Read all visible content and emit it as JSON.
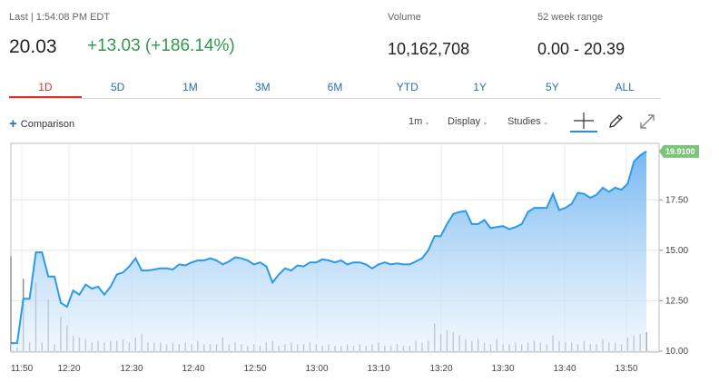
{
  "quote": {
    "last_label": "Last | 1:54:08 PM EDT",
    "price": "20.03",
    "change": "+13.03 (+186.14%)",
    "volume_label": "Volume",
    "volume_value": "10,162,708",
    "range_label": "52 week range",
    "range_value": "0.00 - 20.39",
    "change_color": "#2e9b4a"
  },
  "tabs": [
    {
      "label": "1D",
      "active": true
    },
    {
      "label": "5D"
    },
    {
      "label": "1M"
    },
    {
      "label": "3M"
    },
    {
      "label": "6M"
    },
    {
      "label": "YTD"
    },
    {
      "label": "1Y"
    },
    {
      "label": "5Y"
    },
    {
      "label": "ALL"
    }
  ],
  "toolbar": {
    "comparison_label": "Comparison",
    "interval_label": "1m",
    "display_label": "Display",
    "studies_label": "Studies",
    "icons": [
      "plus-icon",
      "crosshair-icon",
      "pencil-icon",
      "expand-icon"
    ]
  },
  "chart_data": {
    "type": "area",
    "line_color": "#2b9be8",
    "current_label": "19.9100",
    "current_label_color": "#7cc47a",
    "y_ticks": [
      "10.00",
      "12.50",
      "15.00",
      "17.50"
    ],
    "y_range": [
      10,
      20.3
    ],
    "x_ticks": [
      "11:50",
      "12:20",
      "12:30",
      "12:40",
      "12:50",
      "13:00",
      "13:10",
      "13:20",
      "13:30",
      "13:40",
      "13:50"
    ],
    "price": [
      10.4,
      10.4,
      12.6,
      12.6,
      14.9,
      14.9,
      13.7,
      13.7,
      12.4,
      12.2,
      13.0,
      12.8,
      13.3,
      13.1,
      13.2,
      12.8,
      13.2,
      13.8,
      13.9,
      14.2,
      14.6,
      14.0,
      14.0,
      14.05,
      14.1,
      14.1,
      14.05,
      14.3,
      14.25,
      14.4,
      14.5,
      14.5,
      14.6,
      14.5,
      14.3,
      14.45,
      14.65,
      14.6,
      14.5,
      14.3,
      14.4,
      14.2,
      13.4,
      13.8,
      14.1,
      14.0,
      14.25,
      14.2,
      14.4,
      14.4,
      14.55,
      14.5,
      14.4,
      14.5,
      14.3,
      14.4,
      14.4,
      14.3,
      14.1,
      14.3,
      14.4,
      14.3,
      14.35,
      14.3,
      14.3,
      14.45,
      14.6,
      15.0,
      15.7,
      15.7,
      16.3,
      16.8,
      16.9,
      16.95,
      16.3,
      16.3,
      16.5,
      16.1,
      16.15,
      16.2,
      16.05,
      16.15,
      16.3,
      16.9,
      17.1,
      17.1,
      17.1,
      17.8,
      17.0,
      17.1,
      17.3,
      17.85,
      17.8,
      17.6,
      17.75,
      18.1,
      17.9,
      18.1,
      18.0,
      18.3,
      19.4,
      19.7,
      19.9
    ],
    "volume_bars": [
      0.55,
      0.02,
      0.42,
      0.05,
      0.4,
      0.05,
      0.3,
      0.04,
      0.2,
      0.15,
      0.09,
      0.08,
      0.07,
      0.05,
      0.06,
      0.05,
      0.06,
      0.06,
      0.07,
      0.05,
      0.08,
      0.1,
      0.05,
      0.05,
      0.05,
      0.04,
      0.05,
      0.04,
      0.05,
      0.04,
      0.06,
      0.04,
      0.04,
      0.04,
      0.08,
      0.04,
      0.05,
      0.04,
      0.03,
      0.04,
      0.03,
      0.05,
      0.06,
      0.03,
      0.04,
      0.05,
      0.04,
      0.04,
      0.05,
      0.04,
      0.03,
      0.04,
      0.03,
      0.03,
      0.04,
      0.03,
      0.04,
      0.03,
      0.04,
      0.05,
      0.03,
      0.03,
      0.04,
      0.03,
      0.03,
      0.06,
      0.05,
      0.06,
      0.16,
      0.1,
      0.12,
      0.11,
      0.09,
      0.07,
      0.06,
      0.07,
      0.05,
      0.04,
      0.07,
      0.04,
      0.04,
      0.05,
      0.04,
      0.05,
      0.06,
      0.05,
      0.04,
      0.09,
      0.06,
      0.05,
      0.05,
      0.04,
      0.06,
      0.04,
      0.04,
      0.07,
      0.05,
      0.05,
      0.04,
      0.08,
      0.09,
      0.1,
      0.11
    ]
  }
}
